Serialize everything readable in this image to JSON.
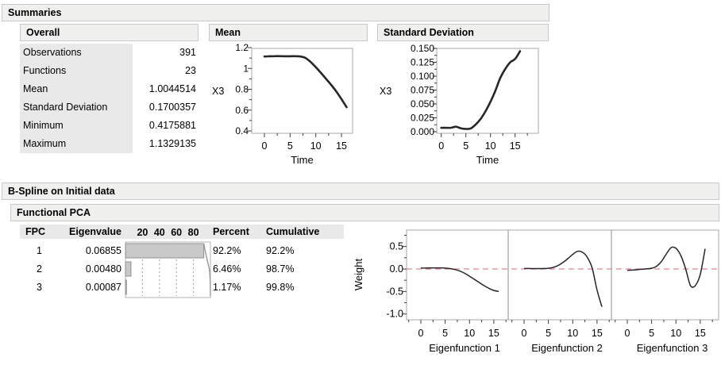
{
  "summaries": {
    "title": "Summaries",
    "overall": {
      "title": "Overall",
      "rows": [
        {
          "label": "Observations",
          "value": "391"
        },
        {
          "label": "Functions",
          "value": "23"
        },
        {
          "label": "Mean",
          "value": "1.0044514"
        },
        {
          "label": "Standard Deviation",
          "value": "0.1700357"
        },
        {
          "label": "Minimum",
          "value": "0.4175881"
        },
        {
          "label": "Maximum",
          "value": "1.1329135"
        }
      ]
    },
    "mean": {
      "title": "Mean"
    },
    "std_dev": {
      "title": "Standard Deviation"
    }
  },
  "bspline": {
    "title": "B-Spline on Initial data",
    "fpca": {
      "title": "Functional PCA",
      "headers": {
        "fpc": "FPC",
        "eigenvalue": "Eigenvalue",
        "scale": "20 40 60 80",
        "percent": "Percent",
        "cumulative": "Cumulative"
      },
      "scale_ticks": [
        "20",
        "40",
        "60",
        "80"
      ],
      "scale_tick_values": [
        20,
        40,
        60,
        80
      ],
      "rows": [
        {
          "fpc": "1",
          "eigenvalue": "0.06855",
          "percent": "92.2%",
          "percent_value": 92.2,
          "cumulative": "92.2%",
          "cumulative_value": 92.2
        },
        {
          "fpc": "2",
          "eigenvalue": "0.00480",
          "percent": "6.46%",
          "percent_value": 6.46,
          "cumulative": "98.7%",
          "cumulative_value": 98.7
        },
        {
          "fpc": "3",
          "eigenvalue": "0.00087",
          "percent": "1.17%",
          "percent_value": 1.17,
          "cumulative": "99.8%",
          "cumulative_value": 99.8
        }
      ]
    }
  },
  "colors": {
    "curve": "#262626",
    "frame": "#a9a9a9",
    "tick": "#3a3a3a",
    "ref_line_red": "#e8838f",
    "bar_fill": "#c9c9c9",
    "bar_stroke": "#8f8f8f",
    "grid_dash": "#9f9f9f",
    "header_bg": "#f0f0ef",
    "cell_bg": "#e9e9e9"
  },
  "chart_data": [
    {
      "id": "mean",
      "type": "line",
      "title": "Mean",
      "xlabel": "Time",
      "ylabel": "X3",
      "xlim": [
        0,
        16
      ],
      "ylim": [
        0.4,
        1.2
      ],
      "xticks": [
        0,
        5,
        10,
        15
      ],
      "xtick_labels": [
        "0",
        "5",
        "10",
        "15"
      ],
      "yticks": [
        1.2,
        1.0,
        0.8,
        0.6,
        0.4
      ],
      "ytick_labels": [
        "1.2",
        "1",
        "0.8",
        "0.6",
        "0.4"
      ],
      "x": [
        0,
        1,
        2,
        3,
        4,
        5,
        6,
        7,
        8,
        9,
        10,
        11,
        12,
        13,
        14,
        15,
        16
      ],
      "y": [
        1.115,
        1.117,
        1.118,
        1.118,
        1.117,
        1.117,
        1.118,
        1.115,
        1.1,
        1.062,
        1.012,
        0.957,
        0.9,
        0.842,
        0.778,
        0.705,
        0.628
      ]
    },
    {
      "id": "std_dev",
      "type": "line",
      "title": "Standard Deviation",
      "xlabel": "Time",
      "ylabel": "X3",
      "xlim": [
        0,
        16
      ],
      "ylim": [
        0.0,
        0.15
      ],
      "xticks": [
        0,
        5,
        10,
        15
      ],
      "xtick_labels": [
        "0",
        "5",
        "10",
        "15"
      ],
      "yticks": [
        0.15,
        0.125,
        0.1,
        0.075,
        0.05,
        0.025,
        0.0
      ],
      "ytick_labels": [
        "0.150",
        "0.125",
        "0.100",
        "0.075",
        "0.050",
        "0.025",
        "0.000"
      ],
      "x": [
        0,
        1,
        2,
        3,
        4,
        5,
        6,
        7,
        8,
        9,
        10,
        11,
        12,
        13,
        14,
        15,
        16
      ],
      "y": [
        0.007,
        0.007,
        0.0072,
        0.009,
        0.0062,
        0.005,
        0.006,
        0.013,
        0.023,
        0.037,
        0.054,
        0.074,
        0.097,
        0.113,
        0.125,
        0.131,
        0.145
      ]
    },
    {
      "id": "eigenfunctions",
      "type": "line",
      "ylabel": "Weight",
      "ylim": [
        -1.0,
        0.5
      ],
      "yticks": [
        0.5,
        0.0,
        -0.5,
        -1.0
      ],
      "ytick_labels": [
        "0.5",
        "0.0",
        "-0.5",
        "-1.0"
      ],
      "xticks": [
        0,
        5,
        10,
        15
      ],
      "xtick_labels": [
        "0",
        "5",
        "10",
        "15"
      ],
      "ref_line_y": 0,
      "panels": [
        {
          "xlabel": "Eigenfunction 1",
          "x": [
            0,
            1,
            2,
            3,
            4,
            5,
            6,
            7,
            8,
            9,
            10,
            11,
            12,
            13,
            14,
            15,
            16
          ],
          "y": [
            0.02,
            0.022,
            0.024,
            0.025,
            0.024,
            0.02,
            0.008,
            -0.012,
            -0.045,
            -0.095,
            -0.16,
            -0.23,
            -0.3,
            -0.37,
            -0.43,
            -0.477,
            -0.5
          ]
        },
        {
          "xlabel": "Eigenfunction 2",
          "x": [
            0,
            1,
            2,
            3,
            4,
            5,
            6,
            7,
            8,
            9,
            10,
            11,
            12,
            13,
            14,
            15,
            16
          ],
          "y": [
            0.01,
            0.01,
            0.009,
            0.008,
            0.01,
            0.016,
            0.035,
            0.078,
            0.145,
            0.23,
            0.325,
            0.393,
            0.373,
            0.26,
            0.02,
            -0.47,
            -0.84
          ]
        },
        {
          "xlabel": "Eigenfunction 3",
          "x": [
            0,
            1,
            2,
            3,
            4,
            5,
            6,
            7,
            8,
            9,
            10,
            11,
            12,
            13,
            14,
            15,
            16
          ],
          "y": [
            -0.03,
            -0.024,
            -0.016,
            -0.006,
            0.004,
            0.016,
            0.06,
            0.165,
            0.33,
            0.475,
            0.46,
            0.3,
            0.0,
            -0.37,
            -0.365,
            -0.12,
            0.45
          ]
        }
      ]
    }
  ]
}
